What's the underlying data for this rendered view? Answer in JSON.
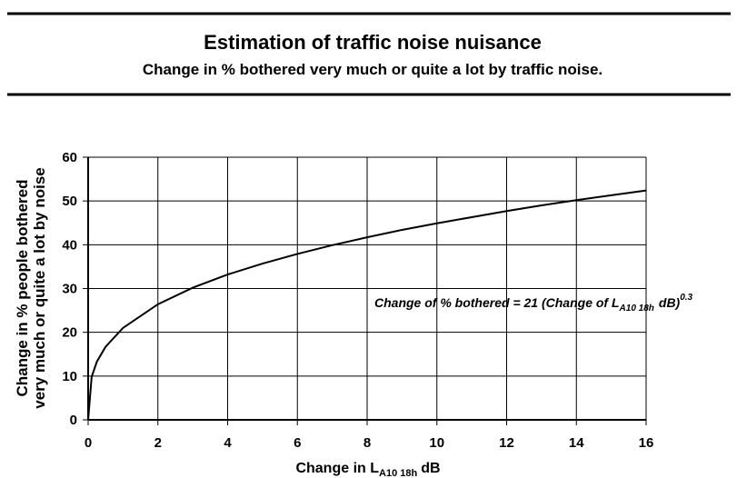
{
  "chart_data": {
    "type": "line",
    "title": "Estimation of traffic noise nuisance",
    "subtitle": "Change in % bothered very much or quite a lot by traffic noise.",
    "ylabel_lines": [
      "Change in % people bothered",
      "very much or quite a lot by noise"
    ],
    "xlabel_parts": [
      "Change in L",
      "A10 18h",
      "dB"
    ],
    "annotation_parts": [
      "Change of % bothered = 21 (Change of L",
      "A10 18h",
      "dB)",
      "0.3"
    ],
    "x": [
      0,
      0.1,
      0.25,
      0.5,
      1,
      2,
      3,
      4,
      5,
      6,
      7,
      8,
      9,
      10,
      11,
      12,
      13,
      14,
      15,
      16
    ],
    "series": [
      {
        "color": "#000000",
        "values": [
          0,
          9.8,
          13.3,
          16.7,
          21,
          26.4,
          30.2,
          33.2,
          35.7,
          37.9,
          39.9,
          41.7,
          43.4,
          44.9,
          46.3,
          47.7,
          49.0,
          50.2,
          51.3,
          52.4
        ]
      }
    ],
    "xlim": [
      0,
      16
    ],
    "ylim": [
      0,
      60
    ],
    "xticks": [
      0,
      2,
      4,
      6,
      8,
      10,
      12,
      14,
      16
    ],
    "yticks": [
      0,
      10,
      20,
      30,
      40,
      50,
      60
    ],
    "grid": true
  }
}
